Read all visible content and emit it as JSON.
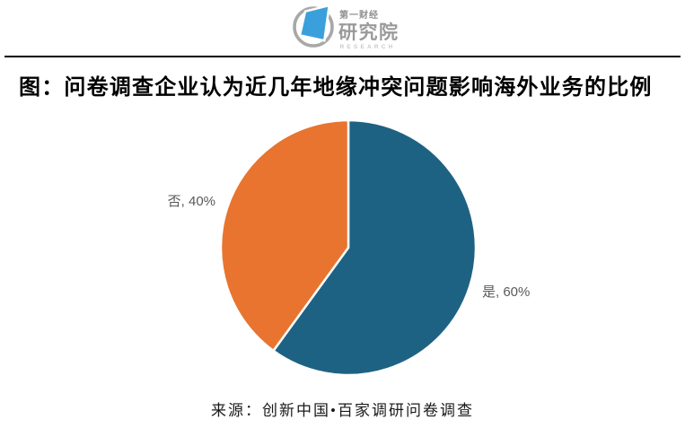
{
  "logo": {
    "brand_top": "第一财经",
    "brand_main": "研究院",
    "brand_sub": "RESEARCH",
    "accent_blue": "#3aa0db",
    "ring_gray": "#a8a8a8"
  },
  "figure": {
    "title": "图：问卷调查企业认为近几年地缘冲突问题影响海外业务的比例",
    "source": "来源：创新中国•百家调研问卷调查"
  },
  "chart_data": {
    "type": "pie",
    "title": "问卷调查企业认为近几年地缘冲突问题影响海外业务的比例",
    "labels": [
      "是",
      "否"
    ],
    "values": [
      60,
      40
    ],
    "unit": "percent",
    "colors": [
      "#1e6283",
      "#e8742f"
    ],
    "data_labels": [
      "是, 60%",
      "否, 40%"
    ],
    "label_color": "#595959",
    "start_angle": "12-oclock",
    "direction": "clockwise",
    "legend": "none",
    "source": "来源：创新中国•百家调研问卷调查"
  }
}
